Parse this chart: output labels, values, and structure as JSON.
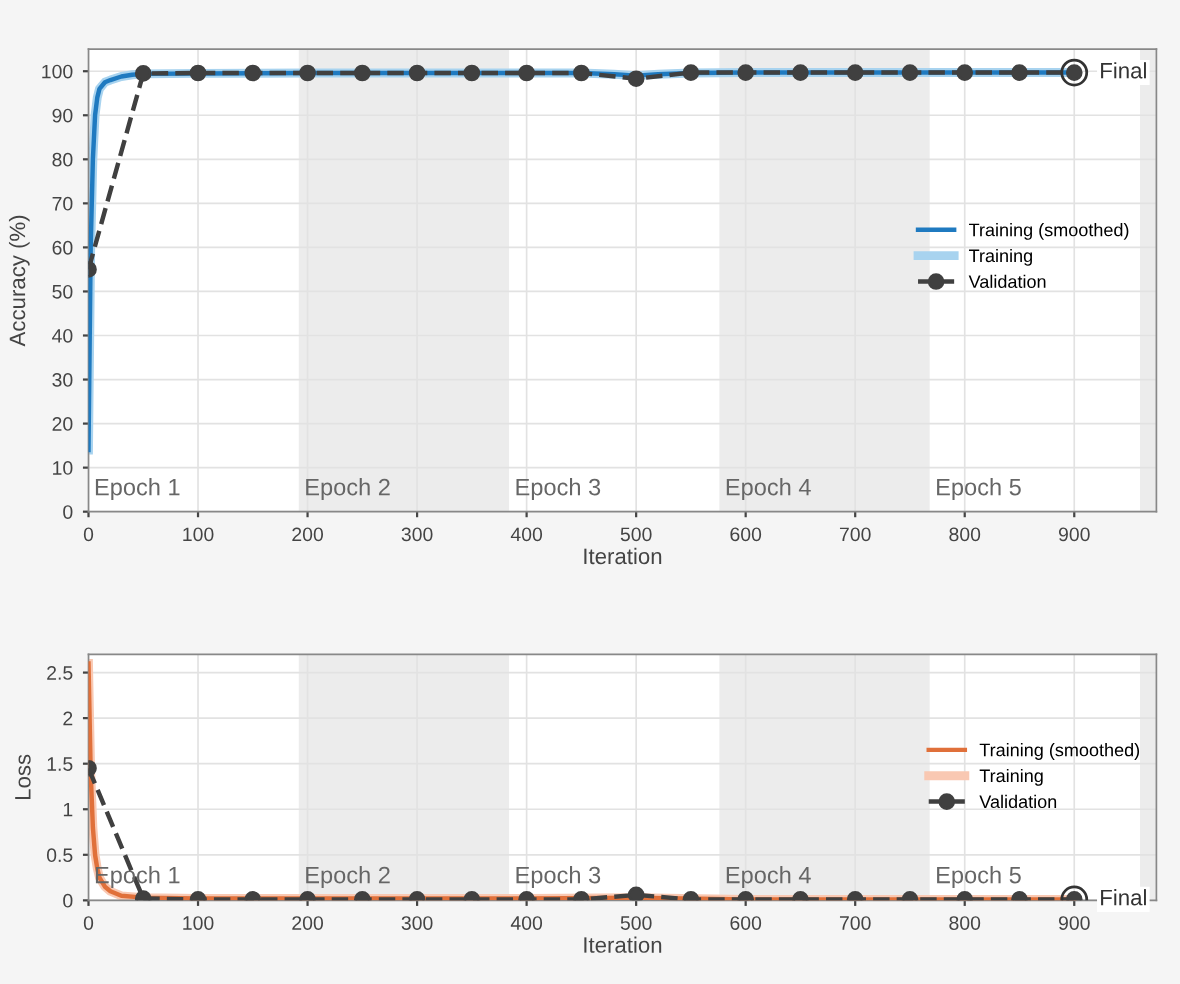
{
  "chart_data": [
    {
      "type": "line",
      "xlabel": "Iteration",
      "ylabel": "Accuracy (%)",
      "xlim": [
        0,
        975
      ],
      "xticks": [
        0,
        100,
        200,
        300,
        400,
        500,
        600,
        700,
        800,
        900
      ],
      "ylim": [
        0,
        105
      ],
      "yticks": [
        0,
        10,
        20,
        30,
        40,
        50,
        60,
        70,
        80,
        90,
        100
      ],
      "grid": true,
      "legend": "right",
      "bands": [
        {
          "axis": "x",
          "from": 192,
          "to": 384,
          "label": "Epoch 2",
          "color": "#ececec"
        },
        {
          "axis": "x",
          "from": 576,
          "to": 768,
          "label": "Epoch 4",
          "color": "#ececec"
        },
        {
          "axis": "x",
          "from": 960,
          "to": 975,
          "color": "#ececec"
        }
      ],
      "annotations": [
        "Epoch 1",
        "Epoch 3",
        "Epoch 5",
        {
          "text": "Final",
          "x": 900,
          "y": 99.7
        }
      ],
      "series": [
        {
          "name": "Training (smoothed)",
          "color": "#1f7ac0",
          "line_style": "solid",
          "x": [
            0,
            2,
            4,
            6,
            8,
            10,
            15,
            20,
            30,
            40,
            50,
            100,
            200,
            300,
            400,
            450,
            480,
            500,
            520,
            550,
            600,
            700,
            800,
            900
          ],
          "values": [
            14,
            60,
            80,
            90,
            94,
            96,
            97.5,
            98,
            98.8,
            99.2,
            99.4,
            99.5,
            99.6,
            99.6,
            99.6,
            99.6,
            99.3,
            99,
            99.3,
            99.6,
            99.7,
            99.7,
            99.7,
            99.7
          ]
        },
        {
          "name": "Training",
          "color": "#a8d3ef",
          "line_style": "solid",
          "x": [
            0,
            2,
            4,
            6,
            8,
            10,
            15,
            20,
            30,
            40,
            50,
            100,
            200,
            300,
            400,
            450,
            480,
            500,
            520,
            550,
            600,
            700,
            800,
            900
          ],
          "values": [
            14,
            60,
            80,
            90,
            94,
            96,
            97.5,
            98,
            98.8,
            99.2,
            99.4,
            99.5,
            99.6,
            99.6,
            99.6,
            99.6,
            99.3,
            99,
            99.3,
            99.6,
            99.7,
            99.7,
            99.7,
            99.7
          ]
        },
        {
          "name": "Validation",
          "color": "#404040",
          "line_style": "dashed",
          "marker": "circle",
          "x": [
            0,
            50,
            100,
            150,
            200,
            250,
            300,
            350,
            400,
            450,
            500,
            550,
            600,
            650,
            700,
            750,
            800,
            850,
            900
          ],
          "values": [
            55,
            99.5,
            99.6,
            99.6,
            99.6,
            99.6,
            99.6,
            99.6,
            99.6,
            99.6,
            98.3,
            99.7,
            99.7,
            99.7,
            99.7,
            99.7,
            99.7,
            99.7,
            99.7
          ]
        }
      ]
    },
    {
      "type": "line",
      "xlabel": "Iteration",
      "ylabel": "Loss",
      "xlim": [
        0,
        975
      ],
      "xticks": [
        0,
        100,
        200,
        300,
        400,
        500,
        600,
        700,
        800,
        900
      ],
      "ylim": [
        0,
        2.7
      ],
      "yticks": [
        0,
        0.5,
        1,
        1.5,
        2,
        2.5
      ],
      "grid": true,
      "legend": "right",
      "bands": [
        {
          "axis": "x",
          "from": 192,
          "to": 384,
          "label": "Epoch 2",
          "color": "#ececec"
        },
        {
          "axis": "x",
          "from": 576,
          "to": 768,
          "label": "Epoch 4",
          "color": "#ececec"
        },
        {
          "axis": "x",
          "from": 960,
          "to": 975,
          "color": "#ececec"
        }
      ],
      "annotations": [
        "Epoch 1",
        "Epoch 3",
        "Epoch 5",
        {
          "text": "Final",
          "x": 900,
          "y": 0.01
        }
      ],
      "series": [
        {
          "name": "Training (smoothed)",
          "color": "#e0703a",
          "line_style": "solid",
          "x": [
            0,
            2,
            4,
            6,
            8,
            10,
            15,
            20,
            30,
            50,
            100,
            200,
            300,
            400,
            500,
            600,
            700,
            800,
            900
          ],
          "values": [
            2.6,
            1.4,
            0.8,
            0.5,
            0.35,
            0.25,
            0.15,
            0.1,
            0.05,
            0.03,
            0.02,
            0.02,
            0.02,
            0.02,
            0.03,
            0.01,
            0.01,
            0.01,
            0.01
          ]
        },
        {
          "name": "Training",
          "color": "#f9c8b2",
          "line_style": "solid",
          "x": [
            0,
            2,
            4,
            6,
            8,
            10,
            15,
            20,
            30,
            50,
            100,
            200,
            300,
            400,
            500,
            600,
            700,
            800,
            900
          ],
          "values": [
            2.6,
            1.4,
            0.8,
            0.5,
            0.35,
            0.25,
            0.15,
            0.1,
            0.05,
            0.03,
            0.02,
            0.02,
            0.02,
            0.02,
            0.03,
            0.01,
            0.01,
            0.01,
            0.01
          ]
        },
        {
          "name": "Validation",
          "color": "#404040",
          "line_style": "dashed",
          "marker": "circle",
          "x": [
            0,
            50,
            100,
            150,
            200,
            250,
            300,
            350,
            400,
            450,
            500,
            550,
            600,
            650,
            700,
            750,
            800,
            850,
            900
          ],
          "values": [
            1.45,
            0.02,
            0.01,
            0.01,
            0.01,
            0.01,
            0.01,
            0.01,
            0.01,
            0.01,
            0.06,
            0.01,
            0.01,
            0.01,
            0.01,
            0.01,
            0.01,
            0.01,
            0.01
          ]
        }
      ]
    }
  ]
}
